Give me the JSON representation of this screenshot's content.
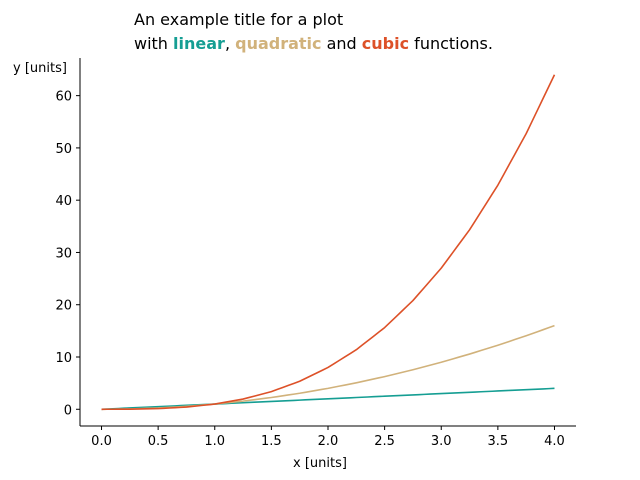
{
  "chart_data": {
    "type": "line",
    "title_line1": "An example title for a plot",
    "title_line2": {
      "prefix": "with ",
      "linear": "linear",
      "sep1": ", ",
      "quadratic": "quadratic",
      "sep2": " and ",
      "cubic": "cubic",
      "suffix": " functions."
    },
    "xlabel": "x [units]",
    "ylabel": "y [units]",
    "xlim": [
      -0.19,
      4.19
    ],
    "ylim": [
      -3.2,
      67.2
    ],
    "xticks": [
      "0.0",
      "0.5",
      "1.0",
      "1.5",
      "2.0",
      "2.5",
      "3.0",
      "3.5",
      "4.0"
    ],
    "yticks": [
      "0",
      "10",
      "20",
      "30",
      "40",
      "50",
      "60"
    ],
    "grid": false,
    "x": [
      0.0,
      0.25,
      0.5,
      0.75,
      1.0,
      1.25,
      1.5,
      1.75,
      2.0,
      2.25,
      2.5,
      2.75,
      3.0,
      3.25,
      3.5,
      3.75,
      4.0
    ],
    "series": [
      {
        "color": "#159e93",
        "values": [
          0.0,
          0.25,
          0.5,
          0.75,
          1.0,
          1.25,
          1.5,
          1.75,
          2.0,
          2.25,
          2.5,
          2.75,
          3.0,
          3.25,
          3.5,
          3.75,
          4.0
        ]
      },
      {
        "color": "#d1b27b",
        "values": [
          0.0,
          0.0625,
          0.25,
          0.5625,
          1.0,
          1.5625,
          2.25,
          3.0625,
          4.0,
          5.0625,
          6.25,
          7.5625,
          9.0,
          10.5625,
          12.25,
          14.0625,
          16.0
        ]
      },
      {
        "color": "#dd5128",
        "values": [
          0.0,
          0.0156,
          0.125,
          0.4219,
          1.0,
          1.9531,
          3.375,
          5.3594,
          8.0,
          11.3906,
          15.625,
          20.7969,
          27.0,
          34.3281,
          42.875,
          52.7344,
          64.0
        ]
      }
    ]
  }
}
